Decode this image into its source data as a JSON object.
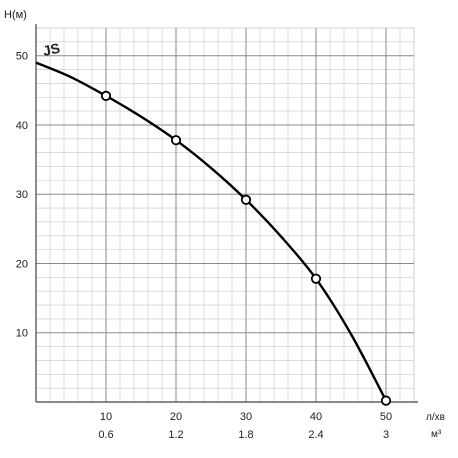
{
  "chart_data": {
    "type": "line",
    "title": "",
    "ylabel": "H(м)",
    "x_units": [
      "л/хв",
      "м³"
    ],
    "xlim": [
      0,
      54
    ],
    "ylim": [
      0,
      54
    ],
    "grid": true,
    "x_ticks": [
      10,
      20,
      30,
      40,
      50
    ],
    "x_tick_labels": [
      "10",
      "20",
      "30",
      "40",
      "50"
    ],
    "x_tick_labels_secondary": [
      "0.6",
      "1.2",
      "1.8",
      "2.4",
      "3"
    ],
    "y_ticks": [
      10,
      20,
      30,
      40,
      50
    ],
    "y_tick_labels": [
      "10",
      "20",
      "30",
      "40",
      "50"
    ],
    "series": [
      {
        "name": "JS",
        "color": "#000000",
        "curve": {
          "x": [
            0,
            5,
            10,
            15,
            20,
            25,
            30,
            35,
            40,
            45,
            50
          ],
          "y": [
            49.0,
            46.9,
            44.2,
            41.2,
            37.8,
            33.8,
            29.2,
            23.9,
            17.8,
            9.8,
            0.2
          ]
        },
        "markers": {
          "x": [
            10,
            20,
            30,
            40,
            50
          ],
          "y": [
            44.2,
            37.8,
            29.2,
            17.8,
            0.2
          ]
        }
      }
    ]
  }
}
